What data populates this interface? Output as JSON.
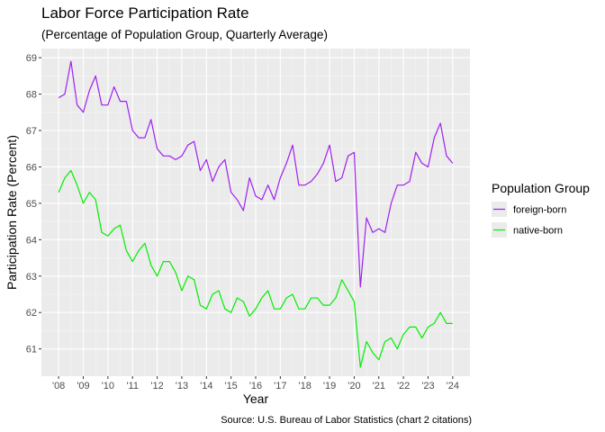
{
  "chart_data": {
    "type": "line",
    "title": "Labor Force Participation Rate",
    "subtitle": "(Percentage of Population Group, Quarterly Average)",
    "xlabel": "Year",
    "ylabel": "Participation Rate (Percent)",
    "caption": "Source: U.S. Bureau of Labor Statistics (chart 2 citations)",
    "legend_title": "Population Group",
    "legend_position": "right",
    "grid": true,
    "x_start": 2008.0,
    "x_step": 0.25,
    "xlim": [
      2007.3,
      2024.7
    ],
    "ylim": [
      60.25,
      69.25
    ],
    "x_ticks": [
      {
        "value": 2008,
        "label": "'08"
      },
      {
        "value": 2009,
        "label": "'09"
      },
      {
        "value": 2010,
        "label": "'10"
      },
      {
        "value": 2011,
        "label": "'11"
      },
      {
        "value": 2012,
        "label": "'12"
      },
      {
        "value": 2013,
        "label": "'13"
      },
      {
        "value": 2014,
        "label": "'14"
      },
      {
        "value": 2015,
        "label": "'15"
      },
      {
        "value": 2016,
        "label": "'16"
      },
      {
        "value": 2017,
        "label": "'17"
      },
      {
        "value": 2018,
        "label": "'18"
      },
      {
        "value": 2019,
        "label": "'19"
      },
      {
        "value": 2020,
        "label": "'20"
      },
      {
        "value": 2021,
        "label": "'21"
      },
      {
        "value": 2022,
        "label": "'22"
      },
      {
        "value": 2023,
        "label": "'23"
      },
      {
        "value": 2024,
        "label": "'24"
      }
    ],
    "y_ticks": [
      {
        "value": 61,
        "label": "61"
      },
      {
        "value": 62,
        "label": "62"
      },
      {
        "value": 63,
        "label": "63"
      },
      {
        "value": 64,
        "label": "64"
      },
      {
        "value": 65,
        "label": "65"
      },
      {
        "value": 66,
        "label": "66"
      },
      {
        "value": 67,
        "label": "67"
      },
      {
        "value": 68,
        "label": "68"
      },
      {
        "value": 69,
        "label": "69"
      }
    ],
    "series": [
      {
        "name": "foreign-born",
        "color": "#a020f0",
        "values": [
          67.9,
          68.0,
          68.9,
          67.7,
          67.5,
          68.1,
          68.5,
          67.7,
          67.7,
          68.2,
          67.8,
          67.8,
          67.0,
          66.8,
          66.8,
          67.3,
          66.5,
          66.3,
          66.3,
          66.2,
          66.3,
          66.6,
          66.7,
          65.9,
          66.2,
          65.6,
          66.0,
          66.2,
          65.3,
          65.1,
          64.8,
          65.7,
          65.2,
          65.1,
          65.5,
          65.1,
          65.7,
          66.1,
          66.6,
          65.5,
          65.5,
          65.6,
          65.8,
          66.1,
          66.6,
          65.6,
          65.7,
          66.3,
          66.4,
          62.7,
          64.6,
          64.2,
          64.3,
          64.2,
          65.0,
          65.5,
          65.5,
          65.6,
          66.4,
          66.1,
          66.0,
          66.8,
          67.2,
          66.3,
          66.1
        ]
      },
      {
        "name": "native-born",
        "color": "#00ee00",
        "values": [
          65.3,
          65.7,
          65.9,
          65.5,
          65.0,
          65.3,
          65.1,
          64.2,
          64.1,
          64.3,
          64.4,
          63.7,
          63.4,
          63.7,
          63.9,
          63.3,
          63.0,
          63.4,
          63.4,
          63.1,
          62.6,
          63.0,
          62.9,
          62.2,
          62.1,
          62.5,
          62.6,
          62.1,
          62.0,
          62.4,
          62.3,
          61.9,
          62.1,
          62.4,
          62.6,
          62.1,
          62.1,
          62.4,
          62.5,
          62.1,
          62.1,
          62.4,
          62.4,
          62.2,
          62.2,
          62.4,
          62.9,
          62.6,
          62.3,
          60.5,
          61.2,
          60.9,
          60.7,
          61.2,
          61.3,
          61.0,
          61.4,
          61.6,
          61.6,
          61.3,
          61.6,
          61.7,
          62.0,
          61.7,
          61.7
        ]
      }
    ]
  }
}
